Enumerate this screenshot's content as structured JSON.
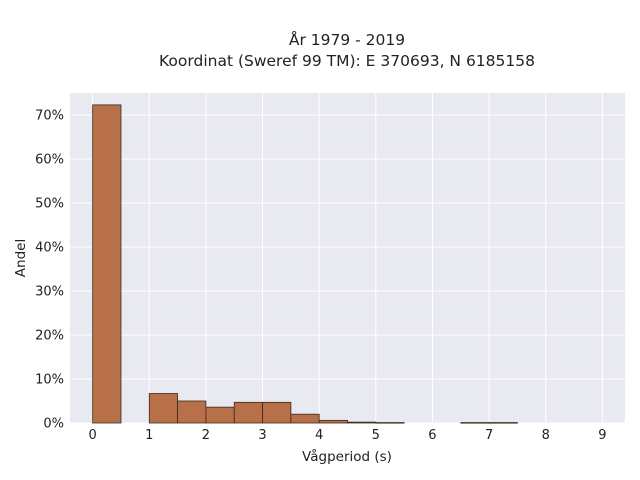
{
  "chart_data": {
    "type": "bar",
    "title": [
      "År 1979 - 2019",
      "Koordinat (Sweref 99 TM): E 370693, N 6185158"
    ],
    "xlabel": "Vågperiod (s)",
    "ylabel": "Andel",
    "xlim": [
      -0.4,
      9.4
    ],
    "ylim": [
      0,
      0.75
    ],
    "xticks": [
      0,
      1,
      2,
      3,
      4,
      5,
      6,
      7,
      8,
      9
    ],
    "xtick_labels": [
      "0",
      "1",
      "2",
      "3",
      "4",
      "5",
      "6",
      "7",
      "8",
      "9"
    ],
    "yticks": [
      0,
      0.1,
      0.2,
      0.3,
      0.4,
      0.5,
      0.6,
      0.7
    ],
    "ytick_labels": [
      "0%",
      "10%",
      "20%",
      "30%",
      "40%",
      "50%",
      "60%",
      "70%"
    ],
    "grid": true,
    "bars": [
      {
        "x0": 0.0,
        "x1": 0.5,
        "value": 0.723
      },
      {
        "x0": 1.0,
        "x1": 1.5,
        "value": 0.067
      },
      {
        "x0": 1.5,
        "x1": 2.0,
        "value": 0.05
      },
      {
        "x0": 2.0,
        "x1": 2.5,
        "value": 0.036
      },
      {
        "x0": 2.5,
        "x1": 3.0,
        "value": 0.047
      },
      {
        "x0": 3.0,
        "x1": 3.5,
        "value": 0.047
      },
      {
        "x0": 3.5,
        "x1": 4.0,
        "value": 0.02
      },
      {
        "x0": 4.0,
        "x1": 4.5,
        "value": 0.006
      },
      {
        "x0": 4.5,
        "x1": 5.0,
        "value": 0.002
      },
      {
        "x0": 5.0,
        "x1": 5.5,
        "value": 0.001
      },
      {
        "x0": 6.5,
        "x1": 7.0,
        "value": 0.001
      },
      {
        "x0": 7.0,
        "x1": 7.5,
        "value": 0.001
      }
    ],
    "colors": {
      "bar_fill": "#b87048",
      "bar_stroke": "#3a2a20",
      "plot_background": "#e9e9f1",
      "grid": "#ffffff"
    }
  }
}
